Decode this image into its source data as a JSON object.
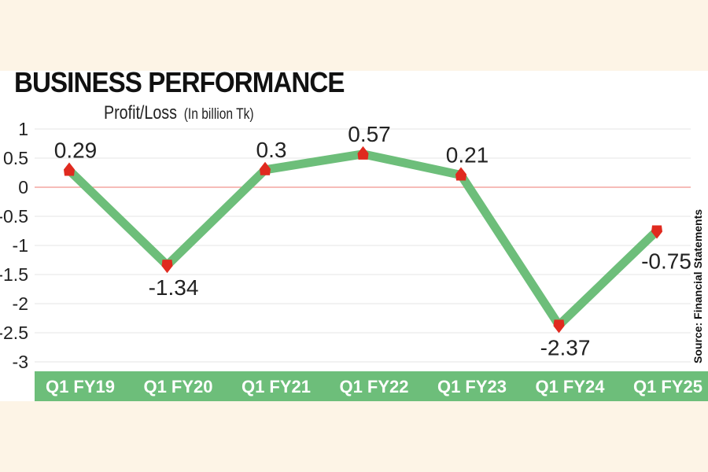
{
  "header": {
    "title": "BUSINESS PERFORMANCE",
    "subtitle": "Profit/Loss",
    "unit": "(In billion Tk)"
  },
  "source": "Source: Financial Statements",
  "colors": {
    "line": "#6dbe7a",
    "marker": "#e02a1f",
    "zero_line": "#f4a6a0",
    "grid": "#e6e6e6",
    "axis_band": "#6dbe7a",
    "background": "#fdf4e6"
  },
  "chart_data": {
    "type": "line",
    "categories": [
      "Q1 FY19",
      "Q1 FY20",
      "Q1 FY21",
      "Q1 FY22",
      "Q1 FY23",
      "Q1 FY24",
      "Q1 FY25"
    ],
    "series": [
      {
        "values": [
          0.29,
          -1.34,
          0.3,
          0.57,
          0.21,
          -2.37,
          -0.75
        ]
      }
    ],
    "data_labels": [
      "0.29",
      "-1.34",
      "0.3",
      "0.57",
      "0.21",
      "-2.37",
      "-0.75"
    ],
    "y_ticks": [
      "1",
      "0.5",
      "0",
      "-0.5",
      "-1",
      "-1.5",
      "-2",
      "-2.5",
      "-3"
    ],
    "ylim": [
      -3,
      1
    ],
    "ylabel": "Profit/Loss (In billion Tk)",
    "xlabel": "",
    "grid": true,
    "legend": "none"
  }
}
